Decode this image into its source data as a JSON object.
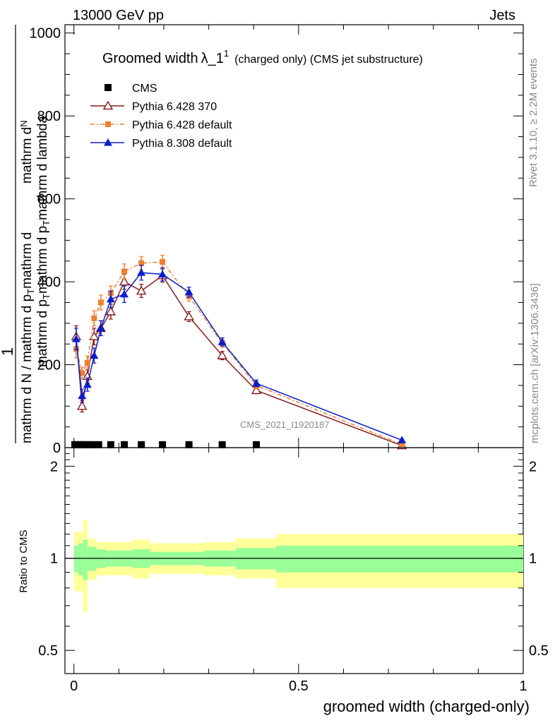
{
  "header": {
    "left": "13000 GeV pp",
    "right": "Jets"
  },
  "side_labels": {
    "rivet": "Rivet 3.1.10, ≥ 2.2M events",
    "mcplots": "mcplots.cern.ch [arXiv:1306.3436]"
  },
  "watermark": "CMS_2021_I1920187",
  "chart_data": [
    {
      "type": "line",
      "title_main": "Groomed width",
      "title_symbol": "λ_1",
      "title_sup": "1",
      "title_rest": "(charged only) (CMS jet substructure)",
      "ylabel_num_1": "1",
      "ylabel_num_2": "mathrm d N / mathrm d p",
      "ylabel_num_3": "mathrm d",
      "ylabel_den_1": "mathrm d",
      "ylabel_den_2": "N",
      "ylabel_den_3": "mathrm d p",
      "ylabel_den_4": "T",
      "ylabel_den_5": "mathrm d p",
      "ylabel_den_6": "T",
      "ylabel_den_7": "mathrm d lambda",
      "ylabel": "mathrm dN / mathrm d p_T mathrm d lambda",
      "ylim": [
        0,
        1020
      ],
      "xlim": [
        -0.02,
        1.0
      ],
      "yticks": [
        0,
        200,
        400,
        600,
        800,
        1000
      ],
      "ytick_labels": [
        "0",
        "200",
        "400",
        "600",
        "800",
        "1000"
      ],
      "legend_position": "top-left",
      "series": [
        {
          "name": "CMS",
          "color": "#000000",
          "marker": "square",
          "x": [
            0.002,
            0.008,
            0.015,
            0.022,
            0.03,
            0.04,
            0.055,
            0.082,
            0.112,
            0.15,
            0.197,
            0.256,
            0.33,
            0.406
          ],
          "y": [
            2,
            2,
            2,
            2,
            2,
            2,
            2,
            2,
            2,
            2,
            2,
            2,
            2,
            2
          ]
        },
        {
          "name": "Pythia 6.428 370",
          "color": "#8b1a1a",
          "marker": "open-triangle",
          "x": [
            0.005,
            0.018,
            0.03,
            0.045,
            0.06,
            0.082,
            0.112,
            0.15,
            0.197,
            0.256,
            0.33,
            0.406,
            0.73
          ],
          "y": [
            268,
            100,
            172,
            268,
            288,
            328,
            400,
            378,
            415,
            316,
            222,
            138,
            5
          ],
          "err": [
            26,
            14,
            16,
            20,
            18,
            18,
            18,
            16,
            16,
            12,
            10,
            8,
            2
          ]
        },
        {
          "name": "Pythia 6.428 default",
          "color": "#f08030",
          "marker": "filled-square",
          "x": [
            0.005,
            0.018,
            0.03,
            0.045,
            0.06,
            0.082,
            0.112,
            0.15,
            0.197,
            0.256,
            0.33,
            0.406,
            0.73
          ],
          "y": [
            238,
            180,
            205,
            312,
            350,
            372,
            425,
            445,
            448,
            365,
            252,
            150,
            8
          ],
          "err": [
            22,
            14,
            16,
            18,
            18,
            18,
            18,
            16,
            16,
            12,
            10,
            8,
            2
          ]
        },
        {
          "name": "Pythia 8.308 default",
          "color": "#0a1ecc",
          "marker": "filled-triangle",
          "x": [
            0.005,
            0.018,
            0.03,
            0.045,
            0.06,
            0.082,
            0.112,
            0.15,
            0.197,
            0.256,
            0.33,
            0.406,
            0.73
          ],
          "y": [
            262,
            125,
            152,
            222,
            288,
            358,
            370,
            422,
            418,
            375,
            255,
            155,
            18
          ],
          "err": [
            26,
            16,
            16,
            18,
            18,
            20,
            20,
            18,
            16,
            12,
            10,
            8,
            2
          ]
        }
      ]
    },
    {
      "type": "area",
      "ylabel": "Ratio to CMS",
      "xlabel": "groomed width (charged-only)",
      "ylim": [
        0.42,
        2.3
      ],
      "xlim": [
        -0.02,
        1.0
      ],
      "yticks": [
        0.5,
        1,
        2
      ],
      "ytick_labels": [
        "0.5",
        "1",
        "2"
      ],
      "xticks": [
        0,
        0.5,
        1
      ],
      "xtick_labels": [
        "0",
        "0.5",
        "1"
      ],
      "reference_line": 1,
      "bands": [
        {
          "name": "total uncertainty",
          "color": "#ffff99",
          "bins": [
            {
              "x0": 0.0,
              "x1": 0.01,
              "lo": 0.78,
              "hi": 1.22
            },
            {
              "x0": 0.01,
              "x1": 0.02,
              "lo": 0.78,
              "hi": 1.22
            },
            {
              "x0": 0.02,
              "x1": 0.03,
              "lo": 0.67,
              "hi": 1.33
            },
            {
              "x0": 0.03,
              "x1": 0.05,
              "lo": 0.85,
              "hi": 1.16
            },
            {
              "x0": 0.05,
              "x1": 0.07,
              "lo": 0.88,
              "hi": 1.13
            },
            {
              "x0": 0.07,
              "x1": 0.13,
              "lo": 0.88,
              "hi": 1.13
            },
            {
              "x0": 0.13,
              "x1": 0.17,
              "lo": 0.86,
              "hi": 1.15
            },
            {
              "x0": 0.17,
              "x1": 0.29,
              "lo": 0.89,
              "hi": 1.12
            },
            {
              "x0": 0.29,
              "x1": 0.36,
              "lo": 0.88,
              "hi": 1.13
            },
            {
              "x0": 0.36,
              "x1": 0.45,
              "lo": 0.86,
              "hi": 1.16
            },
            {
              "x0": 0.45,
              "x1": 1.0,
              "lo": 0.8,
              "hi": 1.2
            }
          ]
        },
        {
          "name": "statistical uncertainty",
          "color": "#99ff99",
          "bins": [
            {
              "x0": 0.0,
              "x1": 0.01,
              "lo": 0.9,
              "hi": 1.1
            },
            {
              "x0": 0.01,
              "x1": 0.02,
              "lo": 0.88,
              "hi": 1.12
            },
            {
              "x0": 0.02,
              "x1": 0.03,
              "lo": 0.85,
              "hi": 1.15
            },
            {
              "x0": 0.03,
              "x1": 0.05,
              "lo": 0.91,
              "hi": 1.09
            },
            {
              "x0": 0.05,
              "x1": 0.07,
              "lo": 0.93,
              "hi": 1.07
            },
            {
              "x0": 0.07,
              "x1": 0.13,
              "lo": 0.94,
              "hi": 1.06
            },
            {
              "x0": 0.13,
              "x1": 0.17,
              "lo": 0.93,
              "hi": 1.07
            },
            {
              "x0": 0.17,
              "x1": 0.29,
              "lo": 0.95,
              "hi": 1.05
            },
            {
              "x0": 0.29,
              "x1": 0.36,
              "lo": 0.94,
              "hi": 1.06
            },
            {
              "x0": 0.36,
              "x1": 0.45,
              "lo": 0.92,
              "hi": 1.08
            },
            {
              "x0": 0.45,
              "x1": 1.0,
              "lo": 0.9,
              "hi": 1.1
            }
          ]
        }
      ]
    }
  ]
}
